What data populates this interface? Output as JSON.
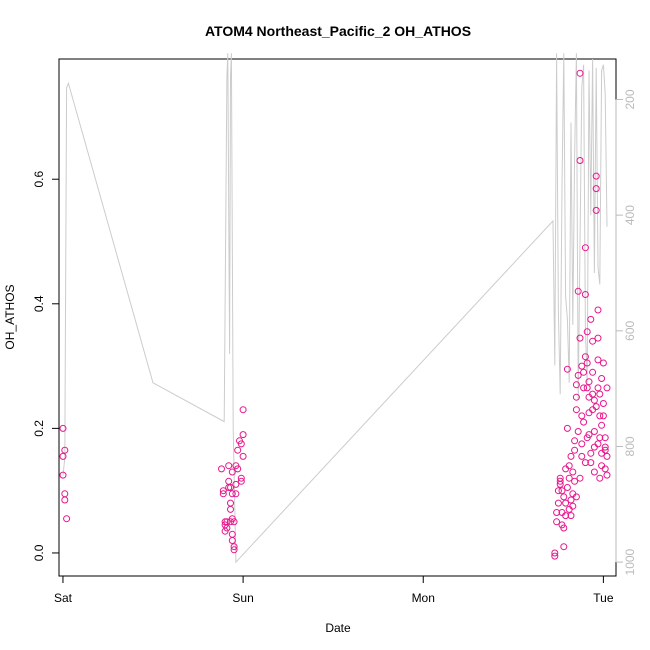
{
  "chart_data": {
    "type": "scatter",
    "title": "ATOM4 Northeast_Pacific_2 OH_ATHOS",
    "xlabel": "Date",
    "ylabel": "OH_ATHOS",
    "x_ticks": [
      "Sat",
      "Sun",
      "Mon",
      "Tue"
    ],
    "x_tick_days": [
      0,
      1,
      2,
      3
    ],
    "xlim_days": [
      -0.022,
      3.07
    ],
    "y_ticks": [
      0.0,
      0.2,
      0.4,
      0.6
    ],
    "ylim": [
      -0.037,
      0.793
    ],
    "y2_ticks": [
      200,
      400,
      600,
      800,
      1000
    ],
    "y2lim": [
      1024,
      130
    ],
    "y2_reversed": true,
    "colors": {
      "points": "#e8168c",
      "pressure_line": "#cccccc",
      "axis": "#000000",
      "axis2": "#bbbbbb"
    },
    "points": [
      [
        0.0,
        0.2
      ],
      [
        0.01,
        0.165
      ],
      [
        0.0,
        0.155
      ],
      [
        0.0,
        0.125
      ],
      [
        0.01,
        0.095
      ],
      [
        0.01,
        0.085
      ],
      [
        0.02,
        0.055
      ],
      [
        0.88,
        0.135
      ],
      [
        0.89,
        0.1
      ],
      [
        0.89,
        0.095
      ],
      [
        0.9,
        0.05
      ],
      [
        0.9,
        0.045
      ],
      [
        0.9,
        0.035
      ],
      [
        0.91,
        0.05
      ],
      [
        0.91,
        0.04
      ],
      [
        0.92,
        0.14
      ],
      [
        0.92,
        0.115
      ],
      [
        0.92,
        0.105
      ],
      [
        0.93,
        0.105
      ],
      [
        0.93,
        0.08
      ],
      [
        0.93,
        0.07
      ],
      [
        0.93,
        0.05
      ],
      [
        0.94,
        0.13
      ],
      [
        0.94,
        0.095
      ],
      [
        0.94,
        0.055
      ],
      [
        0.94,
        0.03
      ],
      [
        0.94,
        0.02
      ],
      [
        0.95,
        0.01
      ],
      [
        0.95,
        0.005
      ],
      [
        0.95,
        0.05
      ],
      [
        0.96,
        0.095
      ],
      [
        0.96,
        0.11
      ],
      [
        0.96,
        0.14
      ],
      [
        0.97,
        0.165
      ],
      [
        0.97,
        0.135
      ],
      [
        0.98,
        0.18
      ],
      [
        0.99,
        0.175
      ],
      [
        0.99,
        0.12
      ],
      [
        0.99,
        0.115
      ],
      [
        1.0,
        0.155
      ],
      [
        1.0,
        0.19
      ],
      [
        1.0,
        0.23
      ],
      [
        2.73,
        -0.005
      ],
      [
        2.73,
        0.0
      ],
      [
        2.74,
        0.05
      ],
      [
        2.74,
        0.065
      ],
      [
        2.75,
        0.08
      ],
      [
        2.75,
        0.1
      ],
      [
        2.76,
        0.11
      ],
      [
        2.76,
        0.12
      ],
      [
        2.77,
        0.1
      ],
      [
        2.77,
        0.065
      ],
      [
        2.77,
        0.045
      ],
      [
        2.78,
        0.01
      ],
      [
        2.78,
        0.04
      ],
      [
        2.79,
        0.06
      ],
      [
        2.79,
        0.135
      ],
      [
        2.8,
        0.295
      ],
      [
        2.8,
        0.2
      ],
      [
        2.81,
        0.14
      ],
      [
        2.81,
        0.12
      ],
      [
        2.82,
        0.155
      ],
      [
        2.82,
        0.085
      ],
      [
        2.83,
        0.075
      ],
      [
        2.83,
        0.095
      ],
      [
        2.84,
        0.18
      ],
      [
        2.84,
        0.165
      ],
      [
        2.85,
        0.23
      ],
      [
        2.85,
        0.27
      ],
      [
        2.85,
        0.25
      ],
      [
        2.86,
        0.285
      ],
      [
        2.86,
        0.42
      ],
      [
        2.87,
        0.345
      ],
      [
        2.87,
        0.77
      ],
      [
        2.87,
        0.63
      ],
      [
        2.88,
        0.3
      ],
      [
        2.88,
        0.22
      ],
      [
        2.88,
        0.155
      ],
      [
        2.89,
        0.265
      ],
      [
        2.89,
        0.29
      ],
      [
        2.9,
        0.315
      ],
      [
        2.9,
        0.49
      ],
      [
        2.9,
        0.415
      ],
      [
        2.91,
        0.355
      ],
      [
        2.91,
        0.305
      ],
      [
        2.91,
        0.265
      ],
      [
        2.92,
        0.275
      ],
      [
        2.92,
        0.25
      ],
      [
        2.92,
        0.19
      ],
      [
        2.93,
        0.145
      ],
      [
        2.93,
        0.375
      ],
      [
        2.94,
        0.34
      ],
      [
        2.94,
        0.29
      ],
      [
        2.94,
        0.23
      ],
      [
        2.95,
        0.245
      ],
      [
        2.95,
        0.17
      ],
      [
        2.95,
        0.13
      ],
      [
        2.96,
        0.55
      ],
      [
        2.96,
        0.585
      ],
      [
        2.96,
        0.605
      ],
      [
        2.97,
        0.39
      ],
      [
        2.97,
        0.345
      ],
      [
        2.97,
        0.31
      ],
      [
        2.97,
        0.265
      ],
      [
        2.98,
        0.255
      ],
      [
        2.98,
        0.22
      ],
      [
        2.98,
        0.185
      ],
      [
        2.99,
        0.16
      ],
      [
        2.99,
        0.14
      ],
      [
        2.99,
        0.28
      ],
      [
        3.0,
        0.305
      ],
      [
        3.0,
        0.24
      ],
      [
        3.0,
        0.22
      ],
      [
        3.01,
        0.185
      ],
      [
        3.01,
        0.165
      ],
      [
        3.01,
        0.135
      ],
      [
        3.02,
        0.155
      ],
      [
        3.02,
        0.125
      ],
      [
        3.02,
        0.265
      ],
      [
        2.76,
        0.115
      ],
      [
        2.78,
        0.09
      ],
      [
        2.8,
        0.105
      ],
      [
        2.81,
        0.07
      ],
      [
        2.83,
        0.13
      ],
      [
        2.84,
        0.115
      ],
      [
        2.86,
        0.195
      ],
      [
        2.88,
        0.175
      ],
      [
        2.89,
        0.21
      ],
      [
        2.91,
        0.185
      ],
      [
        2.93,
        0.16
      ],
      [
        2.95,
        0.195
      ],
      [
        2.97,
        0.175
      ],
      [
        2.99,
        0.205
      ],
      [
        2.79,
        0.08
      ],
      [
        2.82,
        0.06
      ],
      [
        2.85,
        0.09
      ],
      [
        2.87,
        0.12
      ],
      [
        2.9,
        0.145
      ],
      [
        2.92,
        0.225
      ],
      [
        2.94,
        0.255
      ],
      [
        2.96,
        0.235
      ],
      [
        2.98,
        0.12
      ],
      [
        3.01,
        0.17
      ]
    ],
    "pressure_line": [
      [
        0.0,
        850
      ],
      [
        0.01,
        820
      ],
      [
        0.02,
        180
      ],
      [
        0.03,
        172
      ],
      [
        0.5,
        690
      ],
      [
        0.895,
        757
      ],
      [
        0.91,
        160
      ],
      [
        0.915,
        120
      ],
      [
        0.925,
        640
      ],
      [
        0.93,
        160
      ],
      [
        0.935,
        120
      ],
      [
        0.945,
        770
      ],
      [
        0.96,
        1000
      ],
      [
        2.72,
        410
      ],
      [
        2.73,
        660
      ],
      [
        2.74,
        120
      ],
      [
        2.75,
        570
      ],
      [
        2.76,
        710
      ],
      [
        2.77,
        350
      ],
      [
        2.78,
        120
      ],
      [
        2.79,
        540
      ],
      [
        2.8,
        580
      ],
      [
        2.81,
        690
      ],
      [
        2.82,
        240
      ],
      [
        2.83,
        590
      ],
      [
        2.84,
        300
      ],
      [
        2.85,
        120
      ],
      [
        2.86,
        720
      ],
      [
        2.87,
        450
      ],
      [
        2.88,
        180
      ],
      [
        2.89,
        140
      ],
      [
        2.9,
        600
      ],
      [
        2.91,
        690
      ],
      [
        2.92,
        150
      ],
      [
        2.93,
        400
      ],
      [
        2.94,
        130
      ],
      [
        2.95,
        500
      ],
      [
        2.96,
        145
      ],
      [
        2.97,
        490
      ],
      [
        2.98,
        520
      ],
      [
        2.99,
        150
      ],
      [
        3.0,
        140
      ],
      [
        3.01,
        190
      ],
      [
        3.02,
        420
      ]
    ]
  }
}
